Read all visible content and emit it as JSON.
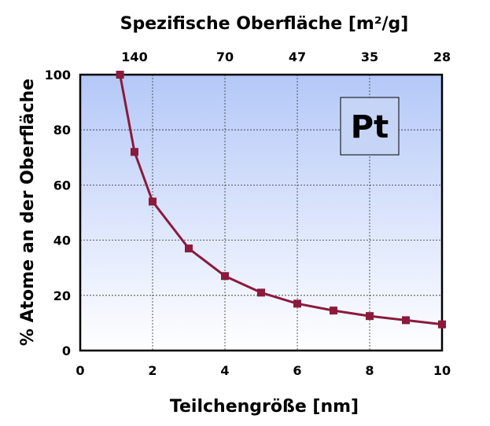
{
  "chart_data": {
    "type": "line",
    "title": "",
    "xlabel": "Teilchengröße [nm]",
    "ylabel": "% Atome an der Oberfläche",
    "x2label": "Spezifische Oberfläche [m²/g]",
    "xlim": [
      0,
      10
    ],
    "ylim": [
      0,
      100
    ],
    "x_ticks": [
      "0",
      "2",
      "4",
      "6",
      "8",
      "10"
    ],
    "y_ticks": [
      "0",
      "20",
      "40",
      "60",
      "80",
      "100"
    ],
    "x2_ticks": [
      {
        "x": 1.5,
        "label": "140"
      },
      {
        "x": 4,
        "label": "70"
      },
      {
        "x": 6,
        "label": "47"
      },
      {
        "x": 8,
        "label": "35"
      },
      {
        "x": 10,
        "label": "28"
      }
    ],
    "grid": true,
    "annotation": "Pt",
    "series": [
      {
        "color": "#8b1a3c",
        "x": [
          1.1,
          1.5,
          2,
          3,
          4,
          5,
          6,
          7,
          8,
          9,
          10
        ],
        "y": [
          100,
          72,
          54,
          37,
          27,
          21,
          17,
          14.5,
          12.5,
          11,
          9.5
        ]
      }
    ],
    "colors": {
      "plot_top": "#b4c8f8",
      "plot_bottom": "#ffffff",
      "line": "#8b1a3c",
      "badge_fill": "#c6d4f6"
    }
  }
}
